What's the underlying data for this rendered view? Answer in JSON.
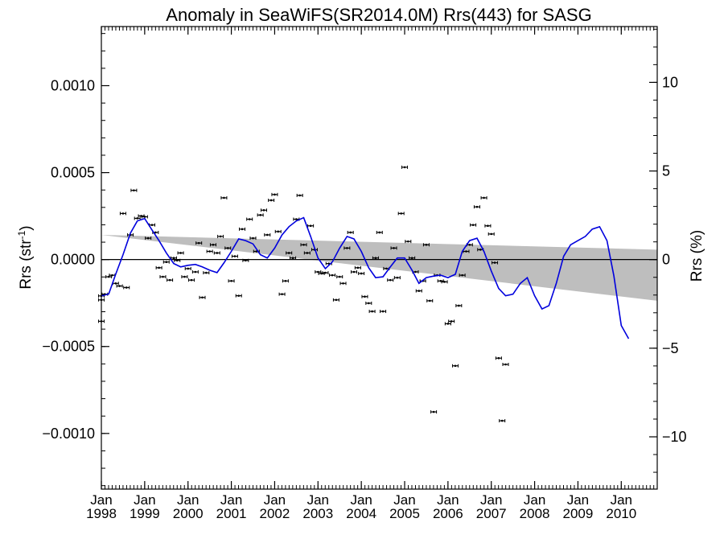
{
  "chart_data": {
    "type": "scatter",
    "title": "Anomaly in SeaWiFS(SR2014.0M) Rrs(443) for SASG",
    "ylabel_left": "Rrs (str",
    "ylabel_left_sup": "-1",
    "ylabel_left_end": ")",
    "ylabel_right": "Rrs (%)",
    "ylim": [
      -0.00132,
      0.00134
    ],
    "ylim_right": [
      -12.95,
      13.15
    ],
    "xlim": [
      1998.0,
      2010.83
    ],
    "y_ticks": [
      {
        "value": 0.001,
        "label": "0.0010"
      },
      {
        "value": 0.0005,
        "label": "0.0005"
      },
      {
        "value": 0.0,
        "label": "0.0000"
      },
      {
        "value": -0.0005,
        "label": "−0.0005"
      },
      {
        "value": -0.001,
        "label": "−0.0010"
      }
    ],
    "y_right_ticks": [
      {
        "value": 10,
        "label": "10"
      },
      {
        "value": 5,
        "label": "5"
      },
      {
        "value": 0,
        "label": "0"
      },
      {
        "value": -5,
        "label": "−5"
      },
      {
        "value": -10,
        "label": "−10"
      }
    ],
    "x_ticks": [
      {
        "value": 1998,
        "month": "Jan",
        "year": "1998"
      },
      {
        "value": 1999,
        "month": "Jan",
        "year": "1999"
      },
      {
        "value": 2000,
        "month": "Jan",
        "year": "2000"
      },
      {
        "value": 2001,
        "month": "Jan",
        "year": "2001"
      },
      {
        "value": 2002,
        "month": "Jan",
        "year": "2002"
      },
      {
        "value": 2003,
        "month": "Jan",
        "year": "2003"
      },
      {
        "value": 2004,
        "month": "Jan",
        "year": "2004"
      },
      {
        "value": 2005,
        "month": "Jan",
        "year": "2005"
      },
      {
        "value": 2006,
        "month": "Jan",
        "year": "2006"
      },
      {
        "value": 2007,
        "month": "Jan",
        "year": "2007"
      },
      {
        "value": 2008,
        "month": "Jan",
        "year": "2008"
      },
      {
        "value": 2009,
        "month": "Jan",
        "year": "2009"
      },
      {
        "value": 2010,
        "month": "Jan",
        "year": "2010"
      }
    ],
    "uncertainty_band": {
      "color": "#bebebe",
      "upper": [
        [
          1998.0,
          0.000142
        ],
        [
          2010.83,
          5.69e-05
        ]
      ],
      "lower": [
        [
          1998.0,
          0.000142
        ],
        [
          2010.83,
          -0.000237
        ]
      ]
    },
    "zero_line": 0.0,
    "smoothed_line_color": "#0000dd",
    "smoothed_line": [
      [
        1998.0,
        -0.000209
      ],
      [
        1998.17,
        -0.000198
      ],
      [
        1998.33,
        -8.5e-05
      ],
      [
        1998.5,
        2.8e-05
      ],
      [
        1998.67,
        0.000152
      ],
      [
        1998.83,
        0.000222
      ],
      [
        1999.0,
        0.000236
      ],
      [
        1999.17,
        0.00017
      ],
      [
        1999.33,
        0.000109
      ],
      [
        1999.5,
        3.8e-05
      ],
      [
        1999.67,
        -2.3e-05
      ],
      [
        1999.83,
        -4.2e-05
      ],
      [
        2000.0,
        -3.3e-05
      ],
      [
        2000.17,
        -2.8e-05
      ],
      [
        2000.33,
        -4.2e-05
      ],
      [
        2000.5,
        -6.1e-05
      ],
      [
        2000.67,
        -7.5e-05
      ],
      [
        2000.83,
        -1.9e-05
      ],
      [
        2001.0,
        4.7e-05
      ],
      [
        2001.17,
        0.000119
      ],
      [
        2001.33,
        0.000109
      ],
      [
        2001.5,
        9e-05
      ],
      [
        2001.67,
        2.8e-05
      ],
      [
        2001.83,
        9e-06
      ],
      [
        2002.0,
        6.6e-05
      ],
      [
        2002.17,
        0.000142
      ],
      [
        2002.33,
        0.000189
      ],
      [
        2002.5,
        0.000222
      ],
      [
        2002.67,
        0.000241
      ],
      [
        2002.83,
        0.000133
      ],
      [
        2003.0,
        9e-06
      ],
      [
        2003.17,
        -5.2e-05
      ],
      [
        2003.33,
        -1.4e-05
      ],
      [
        2003.5,
        6.6e-05
      ],
      [
        2003.67,
        0.000133
      ],
      [
        2003.83,
        0.000119
      ],
      [
        2004.0,
        4.7e-05
      ],
      [
        2004.17,
        -4.7e-05
      ],
      [
        2004.33,
        -0.000104
      ],
      [
        2004.5,
        -9.9e-05
      ],
      [
        2004.67,
        -4.2e-05
      ],
      [
        2004.83,
        9e-06
      ],
      [
        2005.0,
        9e-06
      ],
      [
        2005.17,
        -6.1e-05
      ],
      [
        2005.33,
        -0.000137
      ],
      [
        2005.5,
        -0.000104
      ],
      [
        2005.67,
        -9.5e-05
      ],
      [
        2005.83,
        -9e-05
      ],
      [
        2006.0,
        -0.000104
      ],
      [
        2006.17,
        -8.5e-05
      ],
      [
        2006.33,
        4.7e-05
      ],
      [
        2006.5,
        0.000109
      ],
      [
        2006.67,
        0.000123
      ],
      [
        2006.83,
        4.7e-05
      ],
      [
        2007.0,
        -6.6e-05
      ],
      [
        2007.17,
        -0.000166
      ],
      [
        2007.33,
        -0.000208
      ],
      [
        2007.5,
        -0.000199
      ],
      [
        2007.67,
        -0.000137
      ],
      [
        2007.83,
        -0.000104
      ],
      [
        2008.0,
        -0.000208
      ],
      [
        2008.17,
        -0.000284
      ],
      [
        2008.33,
        -0.000265
      ],
      [
        2008.5,
        -0.000137
      ],
      [
        2008.67,
        1.9e-05
      ],
      [
        2008.83,
        8.5e-05
      ],
      [
        2009.0,
        0.000109
      ],
      [
        2009.17,
        0.000133
      ],
      [
        2009.33,
        0.000175
      ],
      [
        2009.5,
        0.000189
      ],
      [
        2009.67,
        0.000109
      ],
      [
        2009.83,
        -9.5e-05
      ],
      [
        2010.0,
        -0.000379
      ],
      [
        2010.17,
        -0.000455
      ]
    ],
    "points": [
      [
        1997.83,
        -0.000355
      ],
      [
        1997.92,
        -0.000232
      ],
      [
        1998.0,
        -0.000209
      ],
      [
        1998.08,
        -0.000199
      ],
      [
        1998.17,
        -9.9e-05
      ],
      [
        1998.25,
        -9e-05
      ],
      [
        1998.33,
        -0.000137
      ],
      [
        1998.42,
        -0.000152
      ],
      [
        1998.5,
        0.000265
      ],
      [
        1998.58,
        -0.000161
      ],
      [
        1998.67,
        0.000142
      ],
      [
        1998.75,
        0.000398
      ],
      [
        1998.83,
        0.000237
      ],
      [
        1998.92,
        0.000251
      ],
      [
        1999.0,
        0.000246
      ],
      [
        1999.08,
        0.000123
      ],
      [
        1999.17,
        0.000199
      ],
      [
        1999.25,
        0.000156
      ],
      [
        1999.33,
        -4.7e-05
      ],
      [
        1999.42,
        -9.9e-05
      ],
      [
        1999.5,
        -1.4e-05
      ],
      [
        1999.58,
        -0.000118
      ],
      [
        1999.67,
        9e-06
      ],
      [
        1999.75,
        -5e-06
      ],
      [
        1999.83,
        3.8e-05
      ],
      [
        1999.92,
        -9.9e-05
      ],
      [
        2000.0,
        -5.2e-05
      ],
      [
        2000.08,
        -0.000118
      ],
      [
        2000.17,
        -7.1e-05
      ],
      [
        2000.25,
        9.5e-05
      ],
      [
        2000.33,
        -0.000218
      ],
      [
        2000.42,
        -7.6e-05
      ],
      [
        2000.5,
        4.7e-05
      ],
      [
        2000.58,
        8.5e-05
      ],
      [
        2000.67,
        3.8e-05
      ],
      [
        2000.75,
        0.000133
      ],
      [
        2000.83,
        0.000355
      ],
      [
        2000.92,
        6.6e-05
      ],
      [
        2001.0,
        -0.000123
      ],
      [
        2001.08,
        1.9e-05
      ],
      [
        2001.17,
        -0.000208
      ],
      [
        2001.25,
        0.000175
      ],
      [
        2001.33,
        -5e-06
      ],
      [
        2001.42,
        0.000232
      ],
      [
        2001.5,
        0.000123
      ],
      [
        2001.58,
        4.7e-05
      ],
      [
        2001.67,
        0.000256
      ],
      [
        2001.75,
        0.000284
      ],
      [
        2001.83,
        0.000142
      ],
      [
        2001.92,
        0.000341
      ],
      [
        2002.0,
        0.000374
      ],
      [
        2002.08,
        0.000161
      ],
      [
        2002.17,
        -0.000199
      ],
      [
        2002.25,
        -0.000123
      ],
      [
        2002.33,
        3.8e-05
      ],
      [
        2002.42,
        9e-06
      ],
      [
        2002.5,
        0.000232
      ],
      [
        2002.58,
        0.000369
      ],
      [
        2002.67,
        8.5e-05
      ],
      [
        2002.75,
        3.8e-05
      ],
      [
        2002.83,
        0.000194
      ],
      [
        2002.92,
        5.7e-05
      ],
      [
        2003.0,
        -7.1e-05
      ],
      [
        2003.08,
        -8e-05
      ],
      [
        2003.17,
        -7.6e-05
      ],
      [
        2003.25,
        -2.3e-05
      ],
      [
        2003.33,
        -9e-05
      ],
      [
        2003.42,
        -0.000232
      ],
      [
        2003.5,
        -9.9e-05
      ],
      [
        2003.58,
        -0.000137
      ],
      [
        2003.67,
        6.6e-05
      ],
      [
        2003.75,
        0.000156
      ],
      [
        2003.83,
        -7.1e-05
      ],
      [
        2003.92,
        -4.7e-05
      ],
      [
        2004.0,
        -8e-05
      ],
      [
        2004.08,
        -0.000213
      ],
      [
        2004.17,
        -0.000251
      ],
      [
        2004.25,
        -0.000298
      ],
      [
        2004.33,
        9e-06
      ],
      [
        2004.42,
        0.000156
      ],
      [
        2004.5,
        -0.000298
      ],
      [
        2004.58,
        -5.2e-05
      ],
      [
        2004.67,
        -0.000118
      ],
      [
        2004.75,
        6.6e-05
      ],
      [
        2004.83,
        -0.000104
      ],
      [
        2004.92,
        0.000265
      ],
      [
        2005.0,
        0.000531
      ],
      [
        2005.08,
        0.000104
      ],
      [
        2005.17,
        9e-06
      ],
      [
        2005.25,
        -7.1e-05
      ],
      [
        2005.33,
        -0.00018
      ],
      [
        2005.42,
        -0.000123
      ],
      [
        2005.5,
        8.5e-05
      ],
      [
        2005.58,
        -0.000237
      ],
      [
        2005.67,
        -0.000876
      ],
      [
        2005.75,
        -9e-05
      ],
      [
        2005.83,
        -0.000123
      ],
      [
        2005.92,
        -0.000128
      ],
      [
        2006.0,
        -0.000369
      ],
      [
        2006.08,
        -0.000355
      ],
      [
        2006.17,
        -0.000611
      ],
      [
        2006.25,
        -0.000265
      ],
      [
        2006.33,
        -9e-05
      ],
      [
        2006.42,
        4.7e-05
      ],
      [
        2006.5,
        8.5e-05
      ],
      [
        2006.58,
        0.000199
      ],
      [
        2006.67,
        0.000303
      ],
      [
        2006.75,
        5.7e-05
      ],
      [
        2006.83,
        0.000355
      ],
      [
        2006.92,
        0.000194
      ],
      [
        2007.0,
        0.000147
      ],
      [
        2007.08,
        -1.8e-05
      ],
      [
        2007.17,
        -0.000567
      ],
      [
        2007.25,
        -0.000927
      ],
      [
        2007.33,
        -0.000603
      ]
    ]
  }
}
